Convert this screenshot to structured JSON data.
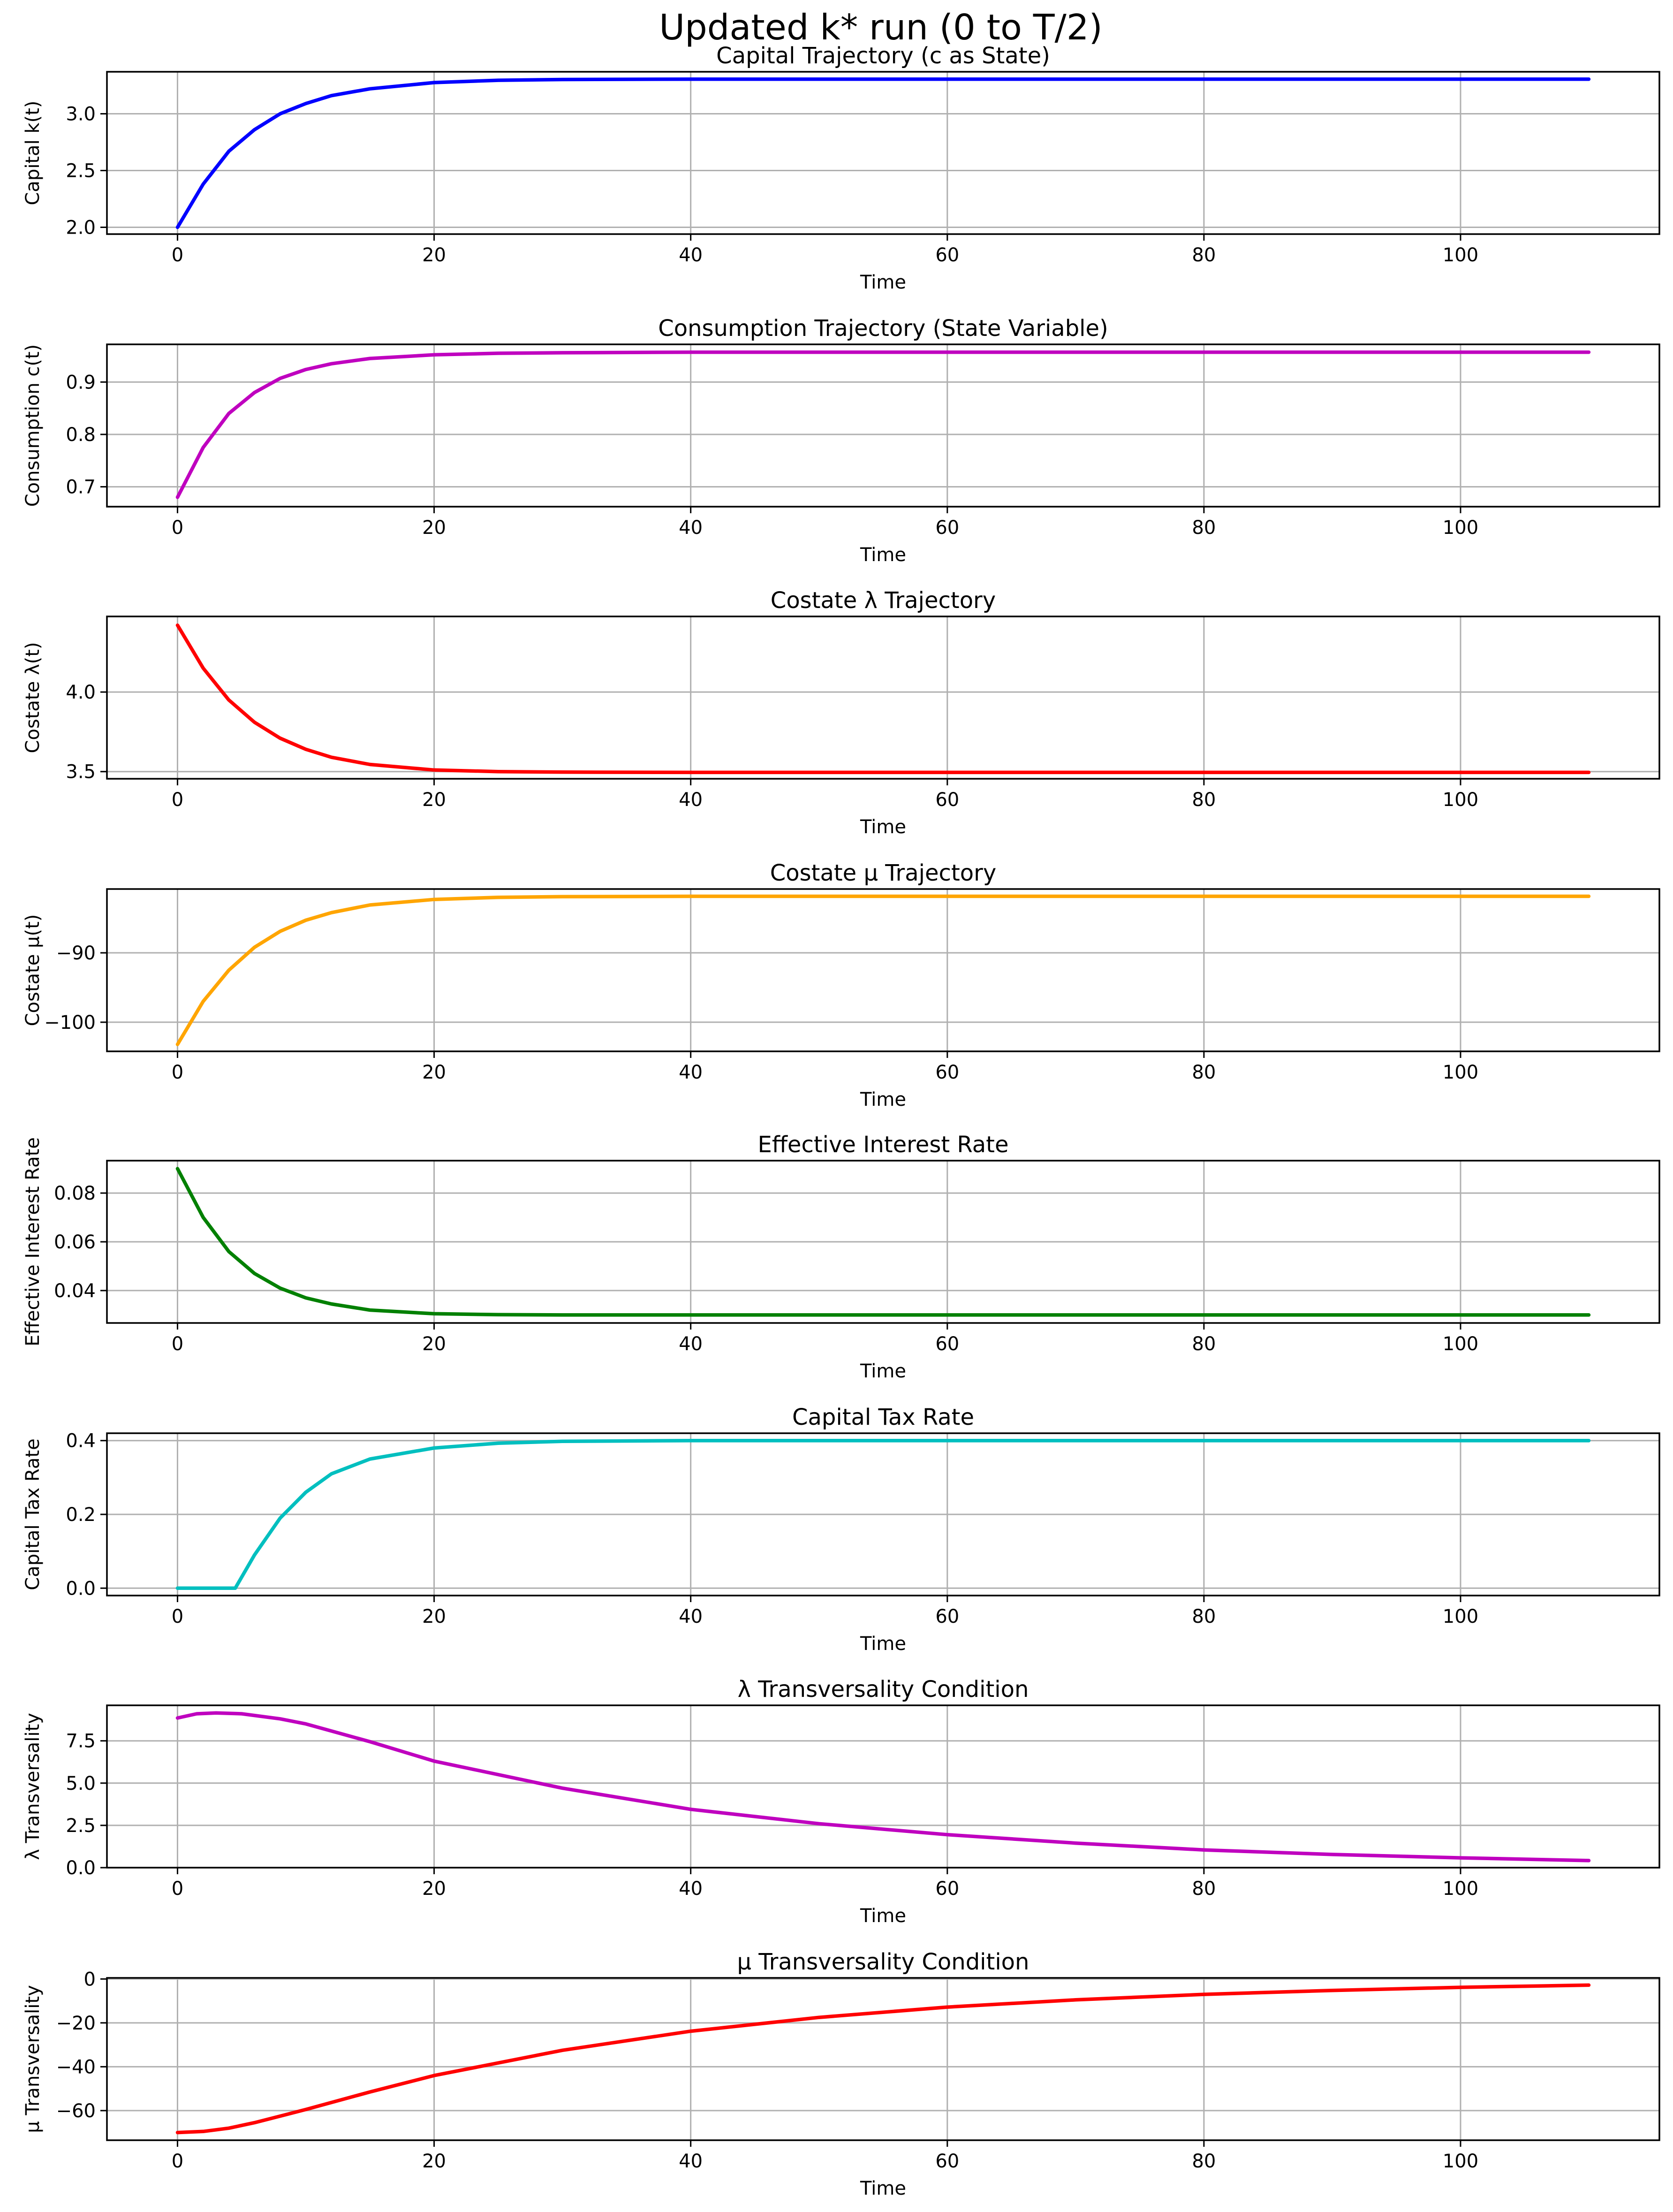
{
  "figure": {
    "suptitle": "Updated k* run (0 to T/2)"
  },
  "chart_data": [
    {
      "type": "line",
      "title": "Capital Trajectory (c as State)",
      "xlabel": "Time",
      "ylabel": "Capital k(t)",
      "xlim": [
        -5.5,
        115.5
      ],
      "ylim": [
        1.94,
        3.37
      ],
      "xticks": [
        0,
        20,
        40,
        60,
        80,
        100
      ],
      "yticks": [
        2.0,
        2.5,
        3.0
      ],
      "ytick_labels": [
        "2.0",
        "2.5",
        "3.0"
      ],
      "grid": true,
      "color": "#0000ff",
      "series": [
        {
          "x": [
            0,
            2,
            4,
            6,
            8,
            10,
            12,
            15,
            20,
            25,
            30,
            40,
            60,
            80,
            110
          ],
          "y": [
            2.0,
            2.38,
            2.67,
            2.86,
            3.0,
            3.09,
            3.16,
            3.22,
            3.275,
            3.295,
            3.302,
            3.305,
            3.305,
            3.305,
            3.305
          ]
        }
      ]
    },
    {
      "type": "line",
      "title": "Consumption Trajectory (State Variable)",
      "xlabel": "Time",
      "ylabel": "Consumption c(t)",
      "xlim": [
        -5.5,
        115.5
      ],
      "ylim": [
        0.662,
        0.972
      ],
      "xticks": [
        0,
        20,
        40,
        60,
        80,
        100
      ],
      "yticks": [
        0.7,
        0.8,
        0.9
      ],
      "ytick_labels": [
        "0.7",
        "0.8",
        "0.9"
      ],
      "grid": true,
      "color": "#bf00bf",
      "series": [
        {
          "x": [
            0,
            2,
            4,
            6,
            8,
            10,
            12,
            15,
            20,
            25,
            30,
            40,
            60,
            80,
            110
          ],
          "y": [
            0.68,
            0.775,
            0.84,
            0.88,
            0.907,
            0.924,
            0.935,
            0.945,
            0.952,
            0.955,
            0.956,
            0.957,
            0.957,
            0.957,
            0.957
          ]
        }
      ]
    },
    {
      "type": "line",
      "title": "Costate λ Trajectory",
      "xlabel": "Time",
      "ylabel": "Costate λ(t)",
      "xlim": [
        -5.5,
        115.5
      ],
      "ylim": [
        3.455,
        4.475
      ],
      "xticks": [
        0,
        20,
        40,
        60,
        80,
        100
      ],
      "yticks": [
        3.5,
        4.0
      ],
      "ytick_labels": [
        "3.5",
        "4.0"
      ],
      "grid": true,
      "color": "#ff0000",
      "series": [
        {
          "x": [
            0,
            2,
            4,
            6,
            8,
            10,
            12,
            15,
            20,
            25,
            30,
            40,
            60,
            80,
            110
          ],
          "y": [
            4.42,
            4.15,
            3.95,
            3.81,
            3.71,
            3.64,
            3.59,
            3.545,
            3.51,
            3.5,
            3.497,
            3.495,
            3.495,
            3.495,
            3.495
          ]
        }
      ]
    },
    {
      "type": "line",
      "title": "Costate μ Trajectory",
      "xlabel": "Time",
      "ylabel": "Costate μ(t)",
      "xlim": [
        -5.5,
        115.5
      ],
      "ylim": [
        -104.2,
        -80.8
      ],
      "xticks": [
        0,
        20,
        40,
        60,
        80,
        100
      ],
      "yticks": [
        -100,
        -90
      ],
      "ytick_labels": [
        "−100",
        "−90"
      ],
      "grid": true,
      "color": "#ffa500",
      "series": [
        {
          "x": [
            0,
            2,
            4,
            6,
            8,
            10,
            12,
            15,
            20,
            25,
            30,
            40,
            60,
            80,
            110
          ],
          "y": [
            -103.2,
            -97.0,
            -92.5,
            -89.2,
            -86.9,
            -85.3,
            -84.2,
            -83.1,
            -82.3,
            -82.0,
            -81.9,
            -81.85,
            -81.85,
            -81.85,
            -81.85
          ]
        }
      ]
    },
    {
      "type": "line",
      "title": "Effective Interest Rate",
      "xlabel": "Time",
      "ylabel": "Effective Interest Rate",
      "xlim": [
        -5.5,
        115.5
      ],
      "ylim": [
        0.0267,
        0.0933
      ],
      "xticks": [
        0,
        20,
        40,
        60,
        80,
        100
      ],
      "yticks": [
        0.04,
        0.06,
        0.08
      ],
      "ytick_labels": [
        "0.04",
        "0.06",
        "0.08"
      ],
      "grid": true,
      "color": "#008000",
      "series": [
        {
          "x": [
            0,
            2,
            4,
            6,
            8,
            10,
            12,
            15,
            20,
            25,
            30,
            40,
            60,
            80,
            110
          ],
          "y": [
            0.09,
            0.07,
            0.056,
            0.047,
            0.041,
            0.037,
            0.0345,
            0.032,
            0.0305,
            0.0301,
            0.03,
            0.03,
            0.03,
            0.03,
            0.03
          ]
        }
      ]
    },
    {
      "type": "line",
      "title": "Capital Tax Rate",
      "xlabel": "Time",
      "ylabel": "Capital Tax Rate",
      "xlim": [
        -5.5,
        115.5
      ],
      "ylim": [
        -0.02,
        0.42
      ],
      "xticks": [
        0,
        20,
        40,
        60,
        80,
        100
      ],
      "yticks": [
        0.0,
        0.2,
        0.4
      ],
      "ytick_labels": [
        "0.0",
        "0.2",
        "0.4"
      ],
      "grid": true,
      "color": "#00bfbf",
      "series": [
        {
          "x": [
            0,
            4.5,
            6,
            8,
            10,
            12,
            15,
            20,
            25,
            30,
            40,
            60,
            80,
            110
          ],
          "y": [
            0.0,
            0.0,
            0.09,
            0.19,
            0.26,
            0.31,
            0.35,
            0.38,
            0.393,
            0.398,
            0.4,
            0.4,
            0.4,
            0.4
          ]
        }
      ]
    },
    {
      "type": "line",
      "title": "λ Transversality Condition",
      "xlabel": "Time",
      "ylabel": "λ Transversality",
      "xlim": [
        -5.5,
        115.5
      ],
      "ylim": [
        0.0,
        9.6
      ],
      "xticks": [
        0,
        20,
        40,
        60,
        80,
        100
      ],
      "yticks": [
        0.0,
        2.5,
        5.0,
        7.5
      ],
      "ytick_labels": [
        "0.0",
        "2.5",
        "5.0",
        "7.5"
      ],
      "grid": true,
      "color": "#bf00bf",
      "series": [
        {
          "x": [
            0,
            1.5,
            3,
            5,
            8,
            10,
            15,
            20,
            30,
            40,
            50,
            60,
            70,
            80,
            90,
            100,
            110
          ],
          "y": [
            8.85,
            9.1,
            9.15,
            9.1,
            8.8,
            8.5,
            7.45,
            6.3,
            4.7,
            3.45,
            2.6,
            1.95,
            1.45,
            1.05,
            0.78,
            0.58,
            0.42
          ]
        }
      ]
    },
    {
      "type": "line",
      "title": "μ Transversality Condition",
      "xlabel": "Time",
      "ylabel": "μ Transversality",
      "xlim": [
        -5.5,
        115.5
      ],
      "ylim": [
        -73.5,
        0.5
      ],
      "xticks": [
        0,
        20,
        40,
        60,
        80,
        100
      ],
      "yticks": [
        -60,
        -40,
        -20,
        0
      ],
      "ytick_labels": [
        "−60",
        "−40",
        "−20",
        "0"
      ],
      "grid": true,
      "color": "#ff0000",
      "series": [
        {
          "x": [
            0,
            2,
            4,
            6,
            8,
            10,
            15,
            20,
            30,
            40,
            50,
            60,
            70,
            80,
            90,
            100,
            110
          ],
          "y": [
            -70.0,
            -69.5,
            -68.0,
            -65.5,
            -62.5,
            -59.5,
            -51.5,
            -44.0,
            -32.5,
            -23.8,
            -17.5,
            -12.8,
            -9.5,
            -7.0,
            -5.2,
            -3.8,
            -2.8
          ]
        }
      ]
    }
  ]
}
